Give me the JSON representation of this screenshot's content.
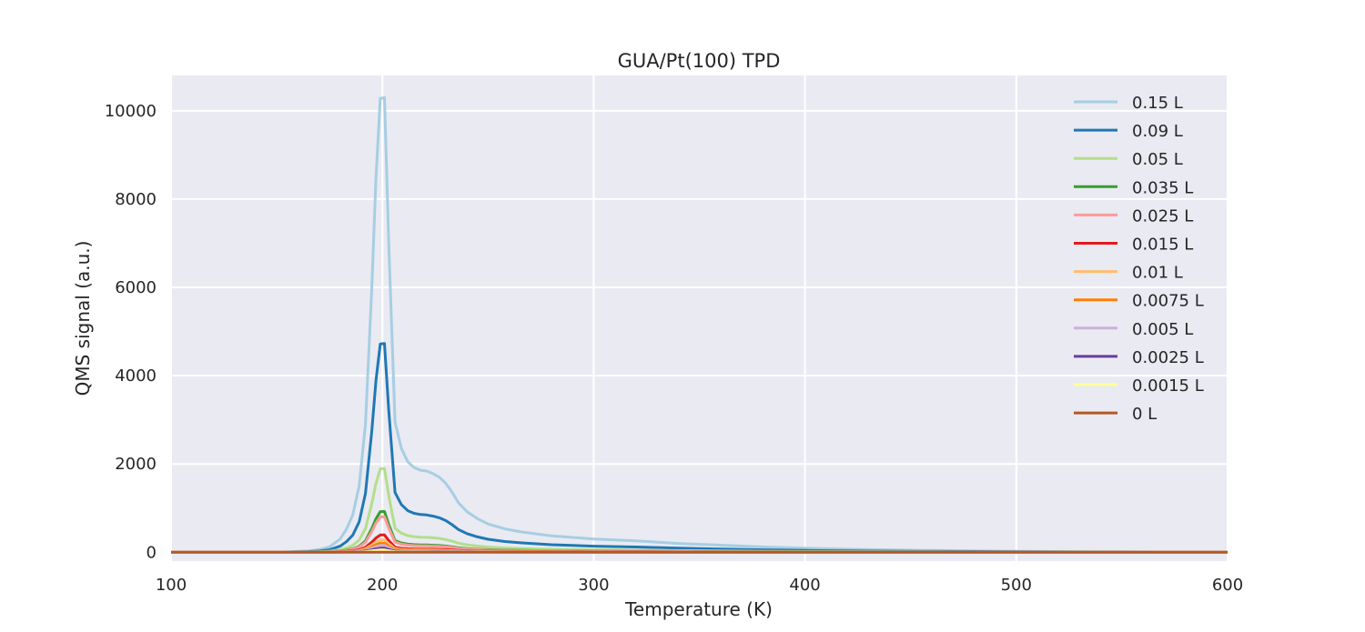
{
  "chart_data": {
    "type": "line",
    "title": "GUA/Pt(100) TPD",
    "xlabel": "Temperature (K)",
    "ylabel": "QMS signal (a.u.)",
    "xlim": [
      100,
      600
    ],
    "ylim": [
      -200,
      10800
    ],
    "xticks": [
      100,
      200,
      300,
      400,
      500,
      600
    ],
    "yticks": [
      0,
      2000,
      4000,
      6000,
      8000,
      10000
    ],
    "grid": true,
    "legend_position": "top-right",
    "x": [
      100,
      150,
      165,
      170,
      175,
      180,
      183,
      186,
      189,
      192,
      195,
      197,
      199,
      201,
      203,
      206,
      209,
      212,
      215,
      218,
      221,
      224,
      227,
      230,
      233,
      236,
      240,
      245,
      250,
      258,
      266,
      280,
      300,
      320,
      340,
      360,
      380,
      400,
      430,
      460,
      500,
      550,
      600
    ],
    "series": [
      {
        "name": "0.15 L",
        "color": "#a6cee3",
        "scale": 1.0
      },
      {
        "name": "0.09 L",
        "color": "#1f78b4",
        "scale": 0.459
      },
      {
        "name": "0.05 L",
        "color": "#b2df8a",
        "scale": 0.184
      },
      {
        "name": "0.035 L",
        "color": "#33a02c",
        "scale": 0.0895
      },
      {
        "name": "0.025 L",
        "color": "#fb9a99",
        "scale": 0.078
      },
      {
        "name": "0.015 L",
        "color": "#e31a1c",
        "scale": 0.038
      },
      {
        "name": "0.01 L",
        "color": "#fdbf6f",
        "scale": 0.027
      },
      {
        "name": "0.0075 L",
        "color": "#ff7f00",
        "scale": 0.02
      },
      {
        "name": "0.005 L",
        "color": "#cab2d6",
        "scale": 0.015
      },
      {
        "name": "0.0025 L",
        "color": "#6a3d9a",
        "scale": 0.009
      },
      {
        "name": "0.0015 L",
        "color": "#ffff99",
        "scale": 0.005
      },
      {
        "name": "0 L",
        "color": "#b15928",
        "scale": 0.0
      }
    ],
    "base_profile": [
      0,
      0,
      30,
      60,
      120,
      300,
      520,
      850,
      1500,
      2900,
      6000,
      8500,
      10280,
      10300,
      7000,
      2950,
      2350,
      2050,
      1920,
      1860,
      1840,
      1780,
      1700,
      1560,
      1360,
      1120,
      920,
      760,
      640,
      530,
      460,
      370,
      300,
      260,
      200,
      160,
      120,
      90,
      60,
      40,
      20,
      10,
      0
    ]
  }
}
